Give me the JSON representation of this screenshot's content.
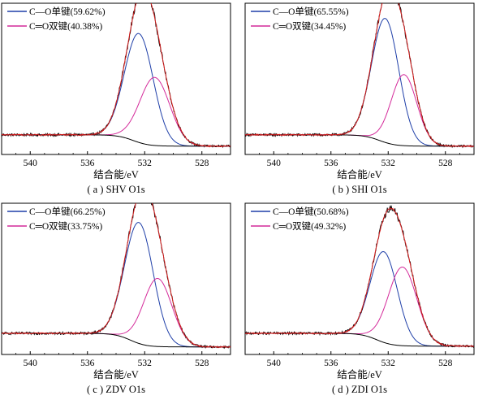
{
  "chart_data": [
    {
      "type": "line",
      "caption": "( a ) SHV O1s",
      "xlabel": "结合能/eV",
      "xlim": [
        542,
        526
      ],
      "ylim": [
        0,
        1
      ],
      "xticks": [
        540,
        536,
        532,
        528
      ],
      "legend_position": "top-left",
      "series": [
        {
          "name": "C—O单键(59.62%)",
          "color": "#1f3fa8",
          "center": 532.4,
          "width": 1.0,
          "amp": 0.72,
          "in_legend": true
        },
        {
          "name": "C═O双键(40.38%)",
          "color": "#d42a9a",
          "center": 531.3,
          "width": 1.05,
          "amp": 0.45,
          "in_legend": true
        },
        {
          "name": "",
          "color": "#000000",
          "role": "background",
          "in_legend": false
        },
        {
          "name": "",
          "color": "#d81e1e",
          "role": "fit",
          "in_legend": false
        },
        {
          "name": "",
          "color": "#000000",
          "role": "raw",
          "in_legend": false
        }
      ],
      "background": {
        "left": 0.13,
        "right": 0.055,
        "mid": 532.8,
        "steep": 0.55
      }
    },
    {
      "type": "line",
      "caption": "( b ) SHI O1s",
      "xlabel": "结合能/eV",
      "xlim": [
        542,
        526
      ],
      "ylim": [
        0,
        1
      ],
      "xticks": [
        540,
        536,
        532,
        528
      ],
      "legend_position": "top-left",
      "series": [
        {
          "name": "C—O单键(65.55%)",
          "color": "#1f3fa8",
          "center": 532.2,
          "width": 0.95,
          "amp": 0.82,
          "in_legend": true
        },
        {
          "name": "C═O双键(34.45%)",
          "color": "#d42a9a",
          "center": 530.9,
          "width": 0.9,
          "amp": 0.47,
          "in_legend": true
        },
        {
          "name": "",
          "color": "#000000",
          "role": "background",
          "in_legend": false
        },
        {
          "name": "",
          "color": "#d81e1e",
          "role": "fit",
          "in_legend": false
        },
        {
          "name": "",
          "color": "#000000",
          "role": "raw",
          "in_legend": false
        }
      ],
      "background": {
        "left": 0.13,
        "right": 0.055,
        "mid": 532.6,
        "steep": 0.55
      }
    },
    {
      "type": "line",
      "caption": "( c ) ZDV O1s",
      "xlabel": "结合能/eV",
      "xlim": [
        542,
        526
      ],
      "ylim": [
        0,
        1
      ],
      "xticks": [
        540,
        536,
        532,
        528
      ],
      "legend_position": "top-left",
      "series": [
        {
          "name": "C—O单键(66.25%)",
          "color": "#1f3fa8",
          "center": 532.4,
          "width": 1.0,
          "amp": 0.8,
          "in_legend": true
        },
        {
          "name": "C═O双键(33.75%)",
          "color": "#d42a9a",
          "center": 531.1,
          "width": 1.0,
          "amp": 0.45,
          "in_legend": true
        },
        {
          "name": "",
          "color": "#000000",
          "role": "background",
          "in_legend": false
        },
        {
          "name": "",
          "color": "#d81e1e",
          "role": "fit",
          "in_legend": false
        },
        {
          "name": "",
          "color": "#000000",
          "role": "raw",
          "in_legend": false
        }
      ],
      "background": {
        "left": 0.14,
        "right": 0.05,
        "mid": 533.0,
        "steep": 0.55
      }
    },
    {
      "type": "line",
      "caption": "( d ) ZDI O1s",
      "xlabel": "结合能/eV",
      "xlim": [
        542,
        526
      ],
      "ylim": [
        0,
        1
      ],
      "xticks": [
        540,
        536,
        532,
        528
      ],
      "legend_position": "top-left",
      "series": [
        {
          "name": "C—O单键(50.68%)",
          "color": "#1f3fa8",
          "center": 532.3,
          "width": 0.95,
          "amp": 0.6,
          "in_legend": true
        },
        {
          "name": "C═O双键(49.32%)",
          "color": "#d42a9a",
          "center": 531.0,
          "width": 1.0,
          "amp": 0.52,
          "in_legend": true
        },
        {
          "name": "",
          "color": "#000000",
          "role": "background",
          "in_legend": false
        },
        {
          "name": "",
          "color": "#d81e1e",
          "role": "fit",
          "in_legend": false
        },
        {
          "name": "",
          "color": "#000000",
          "role": "raw",
          "in_legend": false
        }
      ],
      "background": {
        "left": 0.14,
        "right": 0.055,
        "mid": 532.8,
        "steep": 0.55
      }
    }
  ]
}
